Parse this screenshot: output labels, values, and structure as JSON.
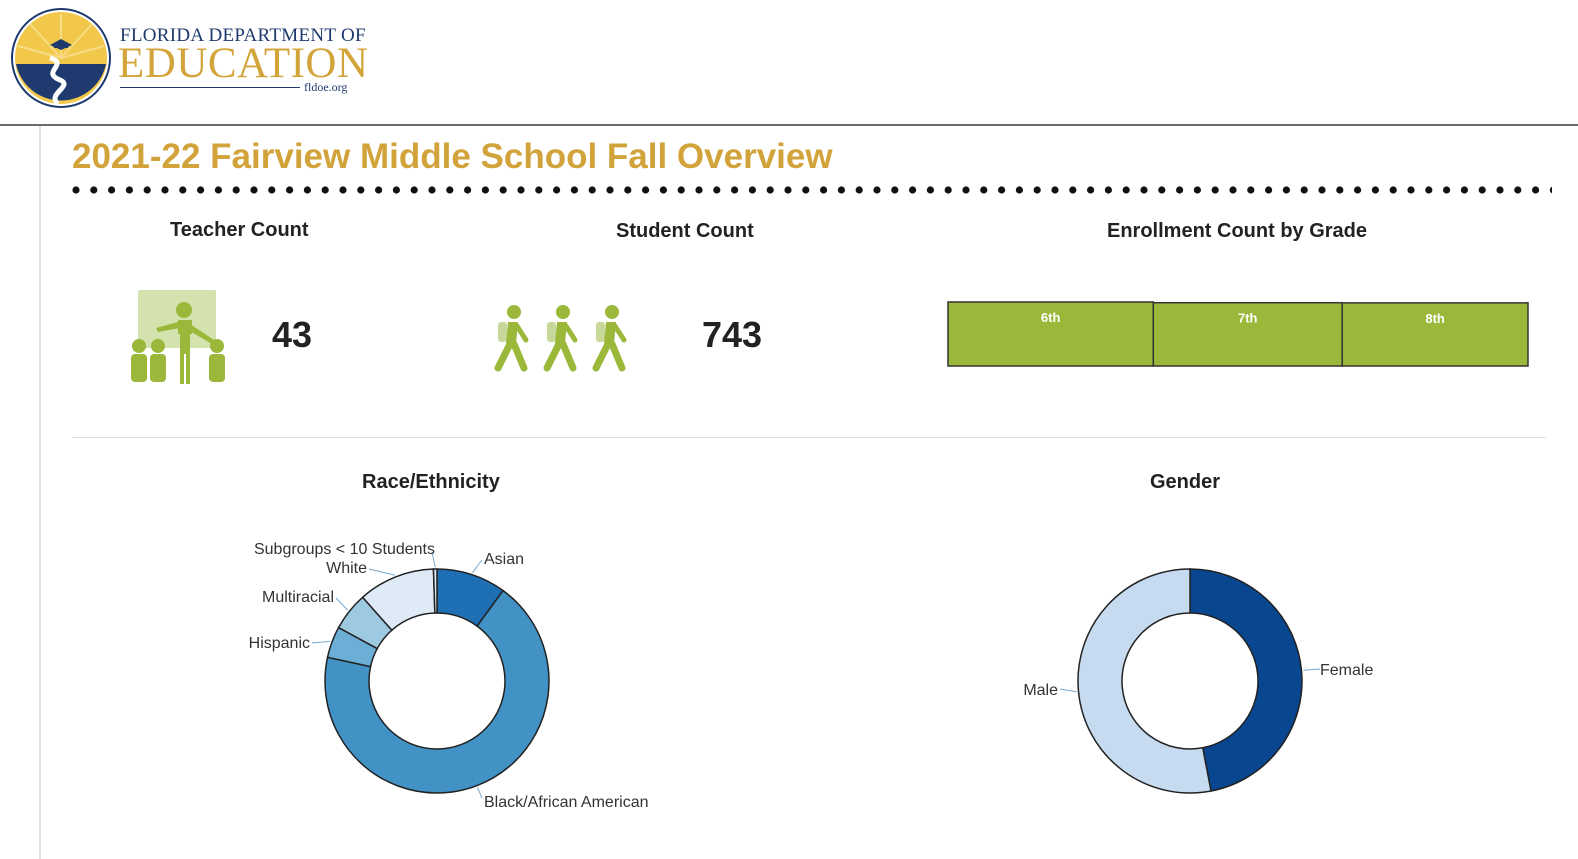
{
  "header": {
    "logo_line1": "Florida Department of",
    "logo_line2": "Education",
    "logo_url": "fldoe.org"
  },
  "page_title": "2021-22 Fairview Middle School Fall Overview",
  "kpis": {
    "teacher": {
      "title": "Teacher Count",
      "value": "43",
      "icon": "teacher-icon"
    },
    "student": {
      "title": "Student Count",
      "value": "743",
      "icon": "students-walking-icon"
    }
  },
  "colors": {
    "accent_gold": "#d2a33a",
    "green": "#9bb83b",
    "green_light": "#d4e2ad",
    "blue_dark": "#1f6fb4",
    "blue_mid": "#4292c6",
    "blue_light": "#6baed6",
    "blue_pale": "#9ecae1",
    "blue_palest": "#deebf7",
    "female_blue": "#08468f",
    "male_blue": "#c6dbef"
  },
  "chart_data": [
    {
      "type": "bar",
      "title": "Enrollment Count by Grade",
      "orientation": "horizontal-stacked",
      "categories": [
        "6th",
        "7th",
        "8th"
      ],
      "values": [
        263,
        242,
        238
      ]
    },
    {
      "type": "pie",
      "donut": true,
      "title": "Race/Ethnicity",
      "labels": [
        "Asian",
        "Black/African American",
        "Hispanic",
        "Multiracial",
        "White",
        "Subgroups < 10 Students"
      ],
      "values": [
        0.1,
        0.68,
        0.045,
        0.055,
        0.11,
        0.005
      ]
    },
    {
      "type": "pie",
      "donut": true,
      "title": "Gender",
      "labels": [
        "Female",
        "Male"
      ],
      "values": [
        0.47,
        0.53
      ]
    }
  ]
}
